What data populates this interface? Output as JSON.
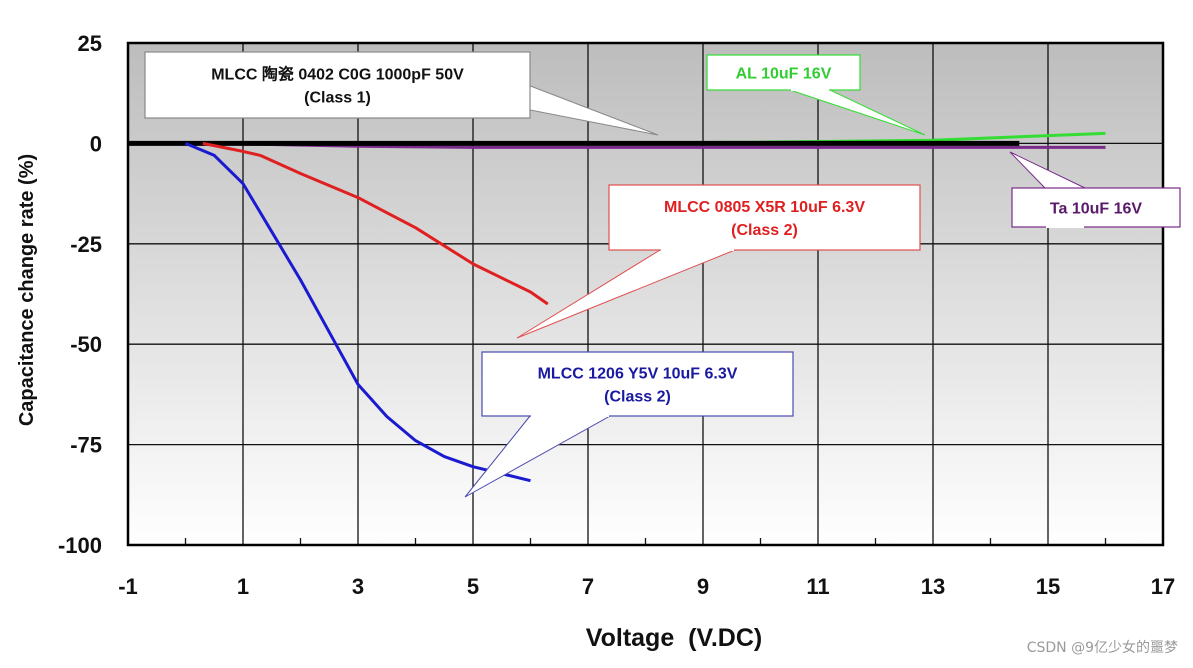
{
  "chart_data": {
    "type": "line",
    "title": "",
    "xlabel": "Voltage  (V.DC)",
    "ylabel": "Capacitance change rate (%)",
    "xlim": [
      -1,
      17
    ],
    "ylim": [
      -100,
      25
    ],
    "x_ticks": [
      "-1",
      "1",
      "3",
      "5",
      "7",
      "9",
      "11",
      "13",
      "15",
      "17"
    ],
    "x_tick_values": [
      -1,
      1,
      3,
      5,
      7,
      9,
      11,
      13,
      15,
      17
    ],
    "y_ticks": [
      "25",
      "0",
      "-25",
      "-50",
      "-75",
      "-100"
    ],
    "y_tick_values": [
      25,
      0,
      -25,
      -50,
      -75,
      -100
    ],
    "grid": true,
    "series": [
      {
        "name": "MLCC 0402 C0G 1000pF 50V (Class 1)",
        "color": "#000000",
        "label_lines": [
          "MLCC 陶瓷 0402 C0G 1000pF 50V",
          "(Class 1)"
        ],
        "points": [
          [
            -1,
            0
          ],
          [
            14.5,
            0
          ]
        ]
      },
      {
        "name": "AL 10uF 16V",
        "color": "#33dd33",
        "label_lines": [
          "AL  10uF 16V"
        ],
        "points": [
          [
            5,
            0
          ],
          [
            10,
            0.3
          ],
          [
            13,
            0.8
          ],
          [
            16,
            2.5
          ]
        ]
      },
      {
        "name": "Ta 10uF 16V",
        "color": "#7a2a8a",
        "label_lines": [
          "Ta  10uF 16V"
        ],
        "points": [
          [
            0.5,
            0
          ],
          [
            3,
            -0.7
          ],
          [
            5,
            -1
          ],
          [
            16,
            -1
          ]
        ]
      },
      {
        "name": "MLCC 0805 X5R 10uF 6.3V (Class 2)",
        "color": "#e02020",
        "label_lines": [
          "MLCC 0805 X5R 10uF 6.3V",
          "(Class 2)"
        ],
        "points": [
          [
            0.3,
            0
          ],
          [
            1,
            -2
          ],
          [
            1.3,
            -3
          ],
          [
            2,
            -7.5
          ],
          [
            3,
            -13.5
          ],
          [
            4,
            -21
          ],
          [
            5,
            -30
          ],
          [
            6,
            -37
          ],
          [
            6.3,
            -40
          ]
        ]
      },
      {
        "name": "MLCC 1206 Y5V 10uF 6.3V (Class 2)",
        "color": "#1a1ad0",
        "label_lines": [
          "MLCC 1206 Y5V 10uF 6.3V",
          "(Class 2)"
        ],
        "points": [
          [
            0,
            0
          ],
          [
            0.5,
            -3
          ],
          [
            1,
            -10
          ],
          [
            1.5,
            -22
          ],
          [
            2,
            -34
          ],
          [
            2.5,
            -47
          ],
          [
            3,
            -60
          ],
          [
            3.5,
            -68
          ],
          [
            4,
            -74
          ],
          [
            4.5,
            -78
          ],
          [
            5,
            -80.5
          ],
          [
            6,
            -84
          ]
        ]
      }
    ]
  },
  "watermark": "CSDN @9亿少女的噩梦"
}
